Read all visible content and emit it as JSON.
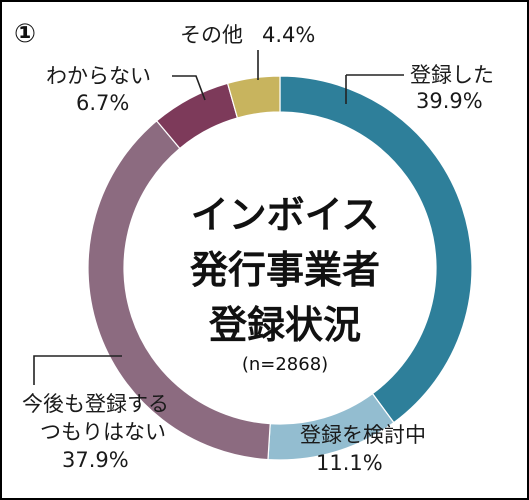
{
  "panel_marker": "①",
  "chart_data": {
    "type": "pie",
    "style": "donut",
    "title_lines": [
      "インボイス",
      "発行事業者",
      "登録状況"
    ],
    "sample": "(n=2868)",
    "slices": [
      {
        "lines": [
          "登録した"
        ],
        "value": 39.9,
        "label": "39.9%",
        "color": "#2e7f9a"
      },
      {
        "lines": [
          "登録を検討中"
        ],
        "value": 11.1,
        "label": "11.1%",
        "color": "#93bdd0"
      },
      {
        "lines": [
          "今後も登録する",
          "つもりはない"
        ],
        "value": 37.9,
        "label": "37.9%",
        "color": "#8c6b80"
      },
      {
        "lines": [
          "わからない"
        ],
        "value": 6.7,
        "label": "6.7%",
        "color": "#7d3a5a"
      },
      {
        "lines": [
          "その他"
        ],
        "value": 4.4,
        "label": "4.4%",
        "color": "#c8b45e"
      }
    ]
  }
}
